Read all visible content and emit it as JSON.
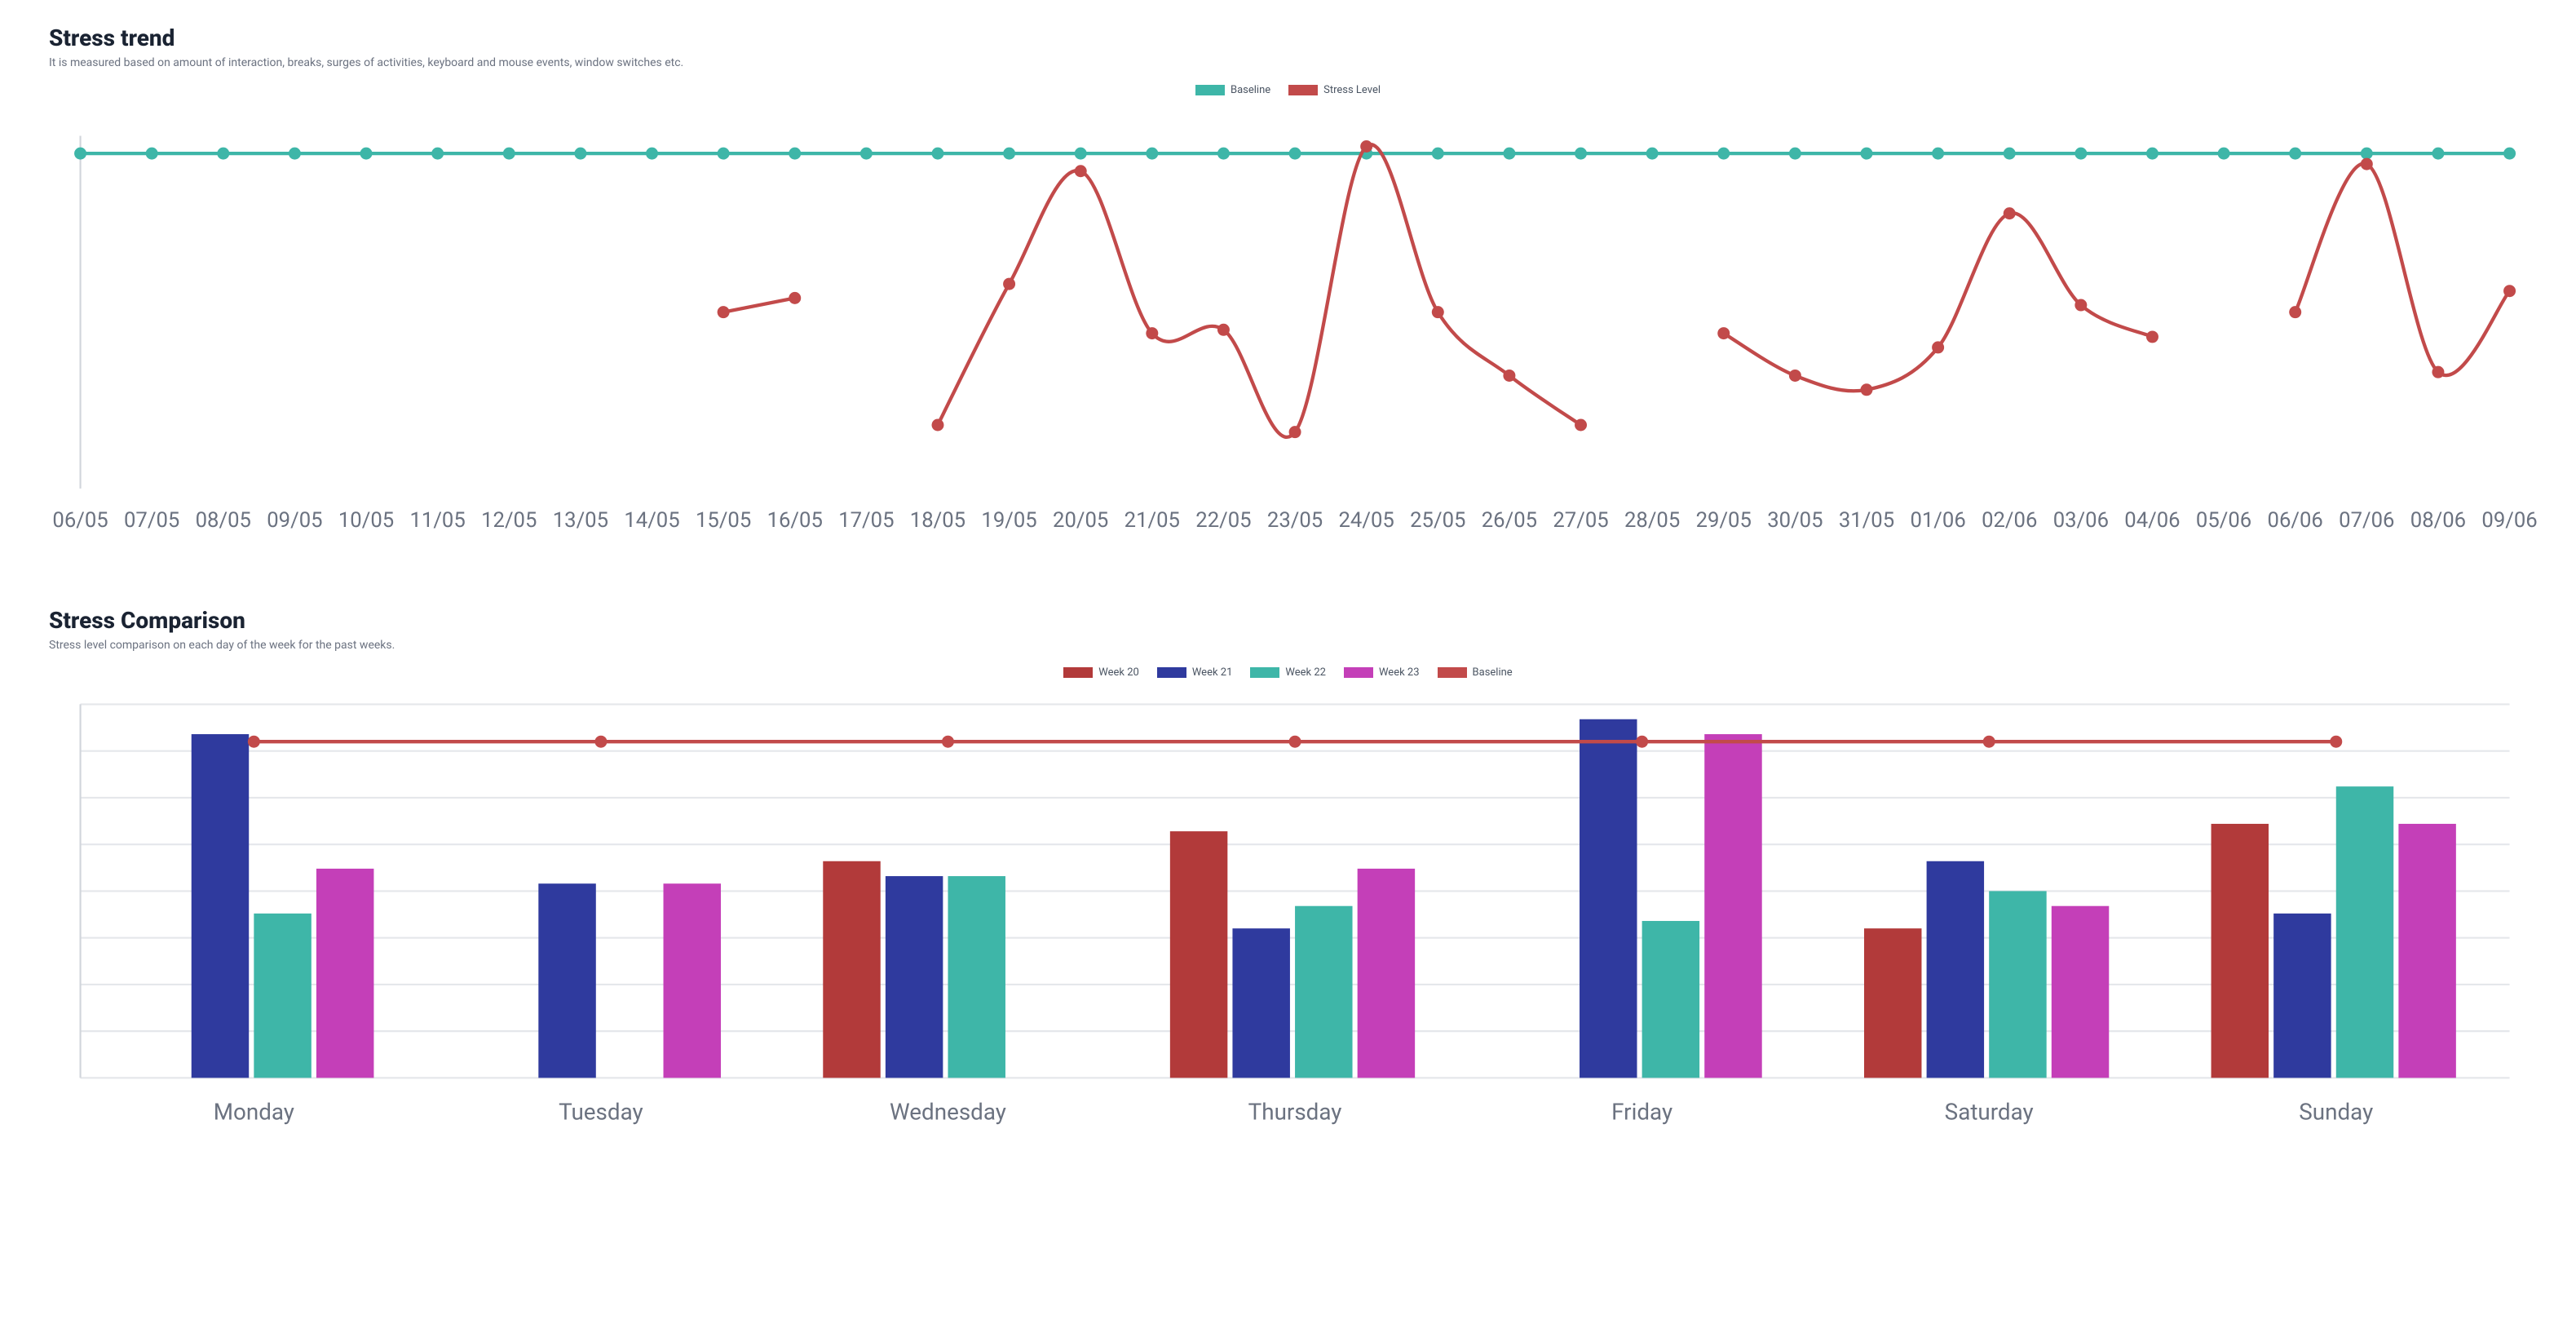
{
  "trend": {
    "title": "Stress trend",
    "subtitle": "It is measured based on amount of interaction, breaks, surges of activities, keyboard and mouse events, window switches etc.",
    "legend": [
      {
        "label": "Baseline",
        "color": "#3eb6a8",
        "type": "line"
      },
      {
        "label": "Stress Level",
        "color": "#c24a4a",
        "type": "line"
      }
    ],
    "chart": {
      "type": "line",
      "background_color": "#ffffff",
      "grid_color": "#e5e7eb",
      "axis_color": "#d1d5db",
      "label_color": "#6b7280",
      "label_fontsize": 12,
      "marker_radius": 3.5,
      "line_width": 2,
      "x_labels": [
        "06/05",
        "07/05",
        "08/05",
        "09/05",
        "10/05",
        "11/05",
        "12/05",
        "13/05",
        "14/05",
        "15/05",
        "16/05",
        "17/05",
        "18/05",
        "19/05",
        "20/05",
        "21/05",
        "22/05",
        "23/05",
        "24/05",
        "25/05",
        "26/05",
        "27/05",
        "28/05",
        "29/05",
        "30/05",
        "31/05",
        "01/06",
        "02/06",
        "03/06",
        "04/06",
        "05/06",
        "06/06",
        "07/06",
        "08/06",
        "09/06"
      ],
      "ylim": [
        0,
        100
      ],
      "baseline_value": 95,
      "baseline_color": "#3eb6a8",
      "stress_color": "#c24a4a",
      "stress_segments": [
        {
          "points": [
            {
              "x": "15/05",
              "y": 50
            },
            {
              "x": "16/05",
              "y": 54
            }
          ]
        },
        {
          "points": [
            {
              "x": "18/05",
              "y": 18
            },
            {
              "x": "19/05",
              "y": 58
            },
            {
              "x": "20/05",
              "y": 90
            },
            {
              "x": "21/05",
              "y": 44
            },
            {
              "x": "22/05",
              "y": 45
            },
            {
              "x": "23/05",
              "y": 16
            },
            {
              "x": "24/05",
              "y": 97
            },
            {
              "x": "25/05",
              "y": 50
            },
            {
              "x": "26/05",
              "y": 32
            },
            {
              "x": "27/05",
              "y": 18
            }
          ]
        },
        {
          "points": [
            {
              "x": "29/05",
              "y": 44
            },
            {
              "x": "30/05",
              "y": 32
            },
            {
              "x": "31/05",
              "y": 28
            },
            {
              "x": "01/06",
              "y": 40
            },
            {
              "x": "02/06",
              "y": 78
            },
            {
              "x": "03/06",
              "y": 52
            },
            {
              "x": "04/06",
              "y": 43
            }
          ]
        },
        {
          "points": [
            {
              "x": "06/06",
              "y": 50
            },
            {
              "x": "07/06",
              "y": 92
            },
            {
              "x": "08/06",
              "y": 33
            },
            {
              "x": "09/06",
              "y": 56
            }
          ]
        }
      ]
    }
  },
  "comparison": {
    "title": "Stress Comparison",
    "subtitle": "Stress level comparison on each day of the week for the past weeks.",
    "legend": [
      {
        "label": "Week 20",
        "color": "#b23a3a",
        "type": "bar"
      },
      {
        "label": "Week 21",
        "color": "#2f3a9e",
        "type": "bar"
      },
      {
        "label": "Week 22",
        "color": "#3eb6a8",
        "type": "bar"
      },
      {
        "label": "Week 23",
        "color": "#c43fb8",
        "type": "bar"
      },
      {
        "label": "Baseline",
        "color": "#c24a4a",
        "type": "line"
      }
    ],
    "chart": {
      "type": "grouped-bar",
      "background_color": "#ffffff",
      "grid_color": "#e5e7eb",
      "axis_color": "#d1d5db",
      "label_color": "#6b7280",
      "label_fontsize": 13,
      "bar_width": 0.18,
      "categories": [
        "Monday",
        "Tuesday",
        "Wednesday",
        "Thursday",
        "Friday",
        "Saturday",
        "Sunday"
      ],
      "ylim": [
        0,
        100
      ],
      "ytick_step": 12.5,
      "baseline_value": 90,
      "baseline_color": "#c24a4a",
      "baseline_marker_radius": 3.5,
      "series": [
        {
          "name": "Week 20",
          "color": "#b23a3a",
          "values": [
            null,
            null,
            58,
            66,
            null,
            40,
            68
          ]
        },
        {
          "name": "Week 21",
          "color": "#2f3a9e",
          "values": [
            92,
            52,
            54,
            40,
            96,
            58,
            44
          ]
        },
        {
          "name": "Week 22",
          "color": "#3eb6a8",
          "values": [
            44,
            null,
            54,
            46,
            42,
            50,
            78
          ]
        },
        {
          "name": "Week 23",
          "color": "#c43fb8",
          "values": [
            56,
            52,
            null,
            56,
            92,
            46,
            68
          ]
        }
      ]
    }
  }
}
